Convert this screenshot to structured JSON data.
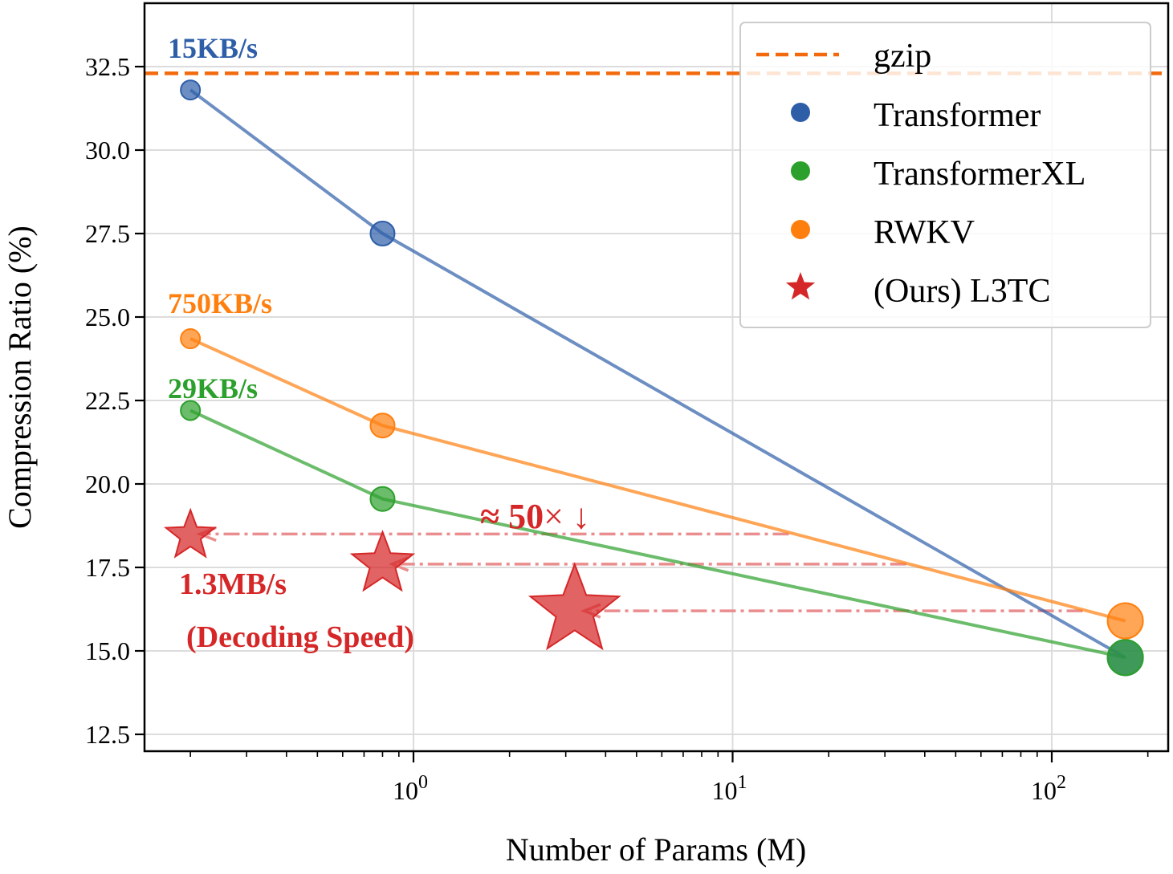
{
  "chart_data": {
    "type": "scatter",
    "title": "",
    "xlabel": "Number of Params (M)",
    "ylabel": "Compression Ratio (%)",
    "xscale": "log",
    "xlim": [
      0.15,
      250
    ],
    "ylim": [
      11.5,
      34.5
    ],
    "grid": true,
    "legend_position": "top-right",
    "x_ticks": [
      {
        "value": 1,
        "base": "10",
        "exp": "0"
      },
      {
        "value": 10,
        "base": "10",
        "exp": "1"
      },
      {
        "value": 100,
        "base": "10",
        "exp": "2"
      }
    ],
    "y_ticks": [
      {
        "value": 12.5,
        "label": "12.5"
      },
      {
        "value": 15.0,
        "label": "15.0"
      },
      {
        "value": 17.5,
        "label": "17.5"
      },
      {
        "value": 20.0,
        "label": "20.0"
      },
      {
        "value": 22.5,
        "label": "22.5"
      },
      {
        "value": 25.0,
        "label": "25.0"
      },
      {
        "value": 27.5,
        "label": "27.5"
      },
      {
        "value": 30.0,
        "label": "30.0"
      },
      {
        "value": 32.5,
        "label": "32.5"
      }
    ],
    "baseline": {
      "name": "gzip",
      "y": 32.3,
      "color": "#f26a0d"
    },
    "series": [
      {
        "name": "Transformer",
        "color": "#2e5ea8",
        "points": [
          {
            "x": 0.2,
            "y": 31.8
          },
          {
            "x": 0.8,
            "y": 27.5
          },
          {
            "x": 170,
            "y": 14.8
          }
        ],
        "speed_label": "15KB/s"
      },
      {
        "name": "TransformerXL",
        "color": "#2ca02c",
        "points": [
          {
            "x": 0.2,
            "y": 22.2
          },
          {
            "x": 0.8,
            "y": 19.55
          },
          {
            "x": 170,
            "y": 14.8
          }
        ],
        "speed_label": "29KB/s"
      },
      {
        "name": "RWKV",
        "color": "#ff7f0e",
        "points": [
          {
            "x": 0.2,
            "y": 24.35
          },
          {
            "x": 0.8,
            "y": 21.75
          },
          {
            "x": 170,
            "y": 15.9
          }
        ],
        "speed_label": "750KB/s"
      },
      {
        "name": "(Ours) L3TC",
        "color": "#d62728",
        "points": [
          {
            "x": 0.2,
            "y": 18.45
          },
          {
            "x": 0.8,
            "y": 17.6
          },
          {
            "x": 3.2,
            "y": 16.2
          }
        ],
        "speed_label": "1.3MB/s",
        "speed_sublabel": "(Decoding Speed)"
      }
    ],
    "arrows": [
      {
        "from_x": 15,
        "to_x": 0.2,
        "y": 18.5
      },
      {
        "from_x": 35,
        "to_x": 0.8,
        "y": 17.6
      },
      {
        "from_x": 125,
        "to_x": 3.2,
        "y": 16.2
      }
    ],
    "annotations": {
      "reduction_prefix": "≈ 50",
      "reduction_suffix": "× ↓"
    }
  }
}
